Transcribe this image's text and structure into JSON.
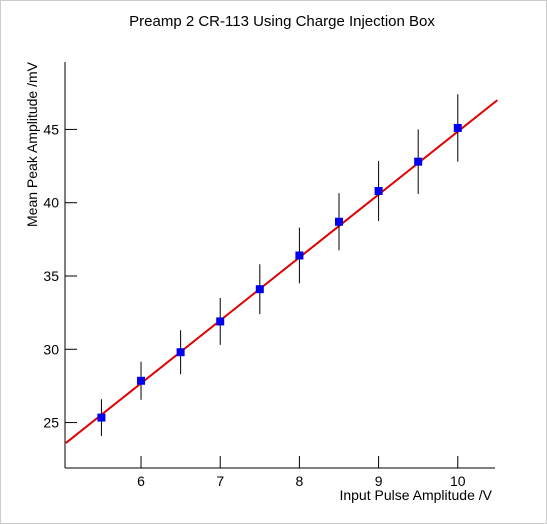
{
  "chart_data": {
    "type": "scatter",
    "title": "Preamp 2 CR-113 Using Charge Injection Box",
    "x_label": "Input Pulse Amplitude /V",
    "y_label": "Mean Peak Amplitude /mV",
    "x": [
      5.5,
      6,
      6.5,
      7,
      7.5,
      8,
      8.5,
      9,
      9.5,
      10
    ],
    "values": [
      25.34,
      27.85,
      29.8,
      31.9,
      34.1,
      36.4,
      38.7,
      40.8,
      42.8,
      45.1
    ],
    "errors": [
      1.25,
      1.3,
      1.5,
      1.6,
      1.7,
      1.9,
      1.95,
      2.05,
      2.2,
      2.3
    ],
    "color": "#0000ee",
    "error_color": "#000000",
    "fit": {
      "x": [
        5.05,
        10.5
      ],
      "values": [
        23.6,
        47.0
      ],
      "color": "#e00000"
    },
    "xlim": [
      5.04,
      10.47
    ],
    "xticks": [
      6,
      7,
      8,
      9,
      10
    ],
    "ylim": [
      21.9,
      49.6
    ],
    "yticks": [
      25,
      30,
      35,
      40,
      45
    ]
  }
}
